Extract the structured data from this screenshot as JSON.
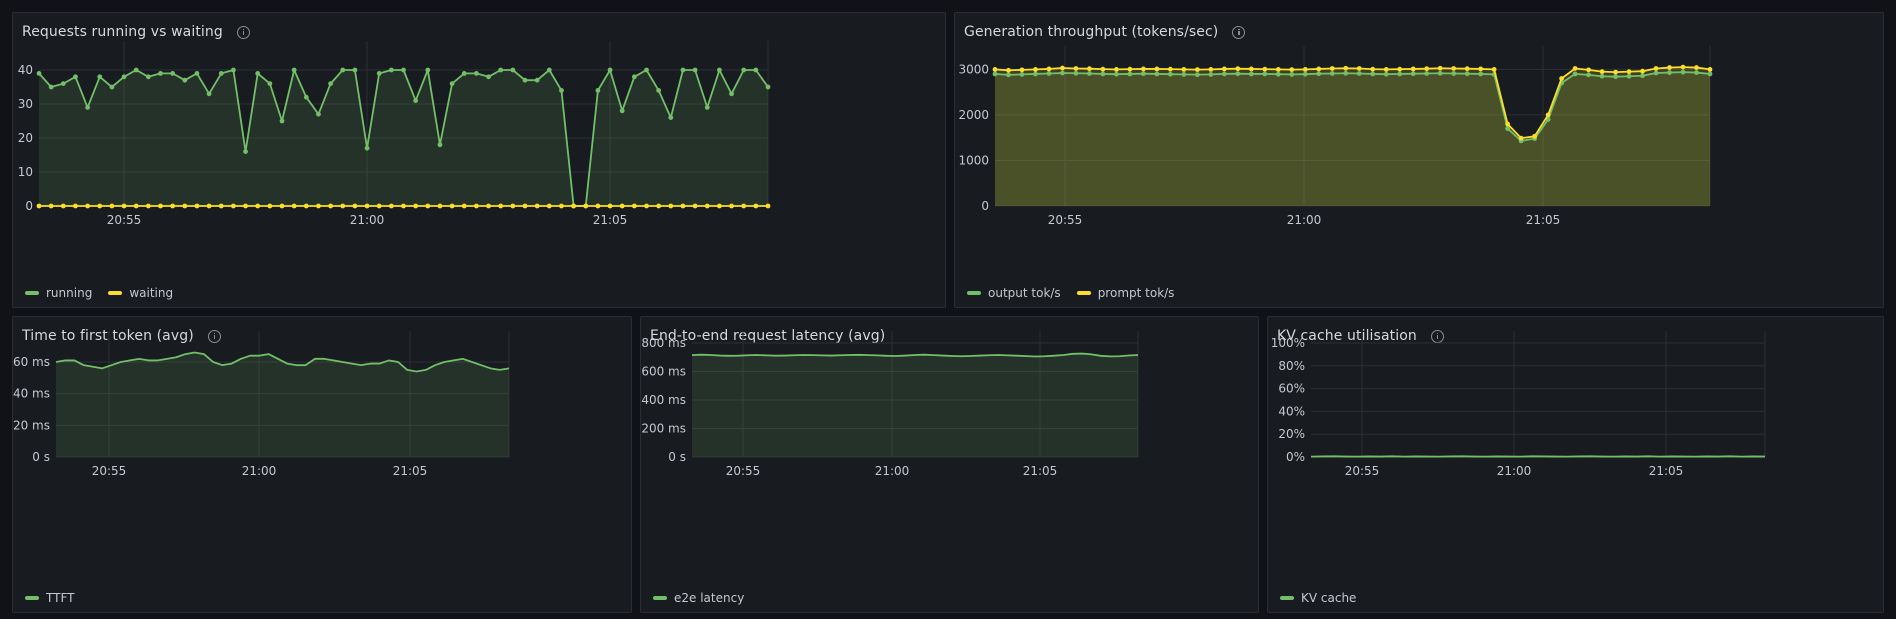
{
  "theme": {
    "green": "#73bf69",
    "yellow": "#fade2a",
    "grid": "#2c2f35",
    "axis_text": "#c7c7cf"
  },
  "panels": {
    "requests": {
      "title": "Requests running vs waiting",
      "legend": [
        "running",
        "waiting"
      ]
    },
    "throughput": {
      "title": "Generation throughput (tokens/sec)",
      "legend": [
        "output tok/s",
        "prompt tok/s"
      ]
    },
    "ttft": {
      "title": "Time to first token (avg)",
      "legend": [
        "TTFT"
      ]
    },
    "e2e": {
      "title": "End-to-end request latency (avg)",
      "legend": [
        "e2e latency"
      ]
    },
    "kv": {
      "title": "KV cache utilisation",
      "legend": [
        "KV cache"
      ]
    }
  },
  "chart_data": [
    {
      "id": "requests",
      "type": "line",
      "title": "Requests running vs waiting",
      "x_ticks": [
        "20:55",
        "21:00",
        "21:05"
      ],
      "y_ticks": [
        "0",
        "10",
        "20",
        "30",
        "40"
      ],
      "ylim": [
        0,
        45
      ],
      "points_visible": true,
      "series": [
        {
          "name": "running",
          "color": "#73bf69",
          "fill": true,
          "values": [
            39,
            35,
            36,
            38,
            29,
            38,
            35,
            38,
            40,
            38,
            39,
            39,
            37,
            39,
            33,
            39,
            40,
            16,
            39,
            36,
            25,
            40,
            32,
            27,
            36,
            40,
            40,
            17,
            39,
            40,
            40,
            31,
            40,
            18,
            36,
            39,
            39,
            38,
            40,
            40,
            37,
            37,
            40,
            34,
            0,
            0,
            34,
            40,
            28,
            38,
            40,
            34,
            26,
            40,
            40,
            29,
            40,
            33,
            40,
            40,
            35
          ]
        },
        {
          "name": "waiting",
          "color": "#fade2a",
          "fill": false,
          "values": [
            0,
            0,
            0,
            0,
            0,
            0,
            0,
            0,
            0,
            0,
            0,
            0,
            0,
            0,
            0,
            0,
            0,
            0,
            0,
            0,
            0,
            0,
            0,
            0,
            0,
            0,
            0,
            0,
            0,
            0,
            0,
            0,
            0,
            0,
            0,
            0,
            0,
            0,
            0,
            0,
            0,
            0,
            0,
            0,
            0,
            0,
            0,
            0,
            0,
            0,
            0,
            0,
            0,
            0,
            0,
            0,
            0,
            0,
            0,
            0,
            0
          ]
        }
      ]
    },
    {
      "id": "throughput",
      "type": "line",
      "title": "Generation throughput (tokens/sec)",
      "x_ticks": [
        "20:55",
        "21:00",
        "21:05"
      ],
      "y_ticks": [
        "0",
        "1000",
        "2000",
        "3000"
      ],
      "ylim": [
        0,
        3250
      ],
      "points_visible": true,
      "series": [
        {
          "name": "output tok/s",
          "color": "#73bf69",
          "fill": true,
          "values": [
            2900,
            2880,
            2890,
            2900,
            2910,
            2920,
            2915,
            2910,
            2900,
            2895,
            2900,
            2905,
            2900,
            2895,
            2890,
            2885,
            2890,
            2900,
            2905,
            2900,
            2900,
            2895,
            2890,
            2895,
            2905,
            2910,
            2915,
            2910,
            2900,
            2895,
            2900,
            2905,
            2910,
            2915,
            2910,
            2905,
            2900,
            2890,
            1700,
            1430,
            1480,
            1900,
            2700,
            2900,
            2880,
            2850,
            2840,
            2850,
            2860,
            2920,
            2930,
            2940,
            2930,
            2900
          ]
        },
        {
          "name": "prompt tok/s",
          "color": "#fade2a",
          "fill": true,
          "values": [
            3000,
            2980,
            2990,
            3000,
            3010,
            3030,
            3020,
            3015,
            3005,
            3000,
            3005,
            3010,
            3010,
            3005,
            3000,
            2995,
            3000,
            3010,
            3015,
            3010,
            3005,
            3000,
            2995,
            3000,
            3010,
            3020,
            3025,
            3020,
            3005,
            3000,
            3005,
            3010,
            3015,
            3025,
            3020,
            3015,
            3010,
            3000,
            1800,
            1490,
            1530,
            2000,
            2800,
            3020,
            2990,
            2950,
            2940,
            2950,
            2960,
            3020,
            3040,
            3050,
            3040,
            3000
          ]
        }
      ]
    },
    {
      "id": "ttft",
      "type": "line",
      "title": "Time to first token (avg)",
      "x_ticks": [
        "20:55",
        "21:00",
        "21:05"
      ],
      "y_ticks": [
        "0 s",
        "20 ms",
        "40 ms",
        "60 ms"
      ],
      "ylim": [
        0,
        72
      ],
      "points_visible": false,
      "series": [
        {
          "name": "TTFT",
          "color": "#73bf69",
          "fill": true,
          "values": [
            60,
            61,
            61,
            58,
            57,
            56,
            58,
            60,
            61,
            62,
            61,
            61,
            62,
            63,
            65,
            66,
            65,
            60,
            58,
            59,
            62,
            64,
            64,
            65,
            62,
            59,
            58,
            58,
            62,
            62,
            61,
            60,
            59,
            58,
            59,
            59,
            61,
            60,
            55,
            54,
            55,
            58,
            60,
            61,
            62,
            60,
            58,
            56,
            55,
            56
          ]
        }
      ]
    },
    {
      "id": "e2e",
      "type": "line",
      "title": "End-to-end request latency (avg)",
      "x_ticks": [
        "20:55",
        "21:00",
        "21:05"
      ],
      "y_ticks": [
        "0 s",
        "200 ms",
        "400 ms",
        "600 ms",
        "800 ms"
      ],
      "ylim": [
        0,
        800
      ],
      "points_visible": false,
      "series": [
        {
          "name": "e2e latency",
          "color": "#73bf69",
          "fill": true,
          "values": [
            715,
            718,
            716,
            712,
            710,
            711,
            714,
            716,
            713,
            711,
            712,
            714,
            716,
            715,
            713,
            712,
            714,
            716,
            717,
            715,
            713,
            710,
            709,
            712,
            716,
            718,
            715,
            712,
            709,
            707,
            709,
            712,
            714,
            716,
            713,
            711,
            708,
            705,
            707,
            711,
            716,
            724,
            726,
            720,
            710,
            706,
            707,
            712,
            716
          ]
        }
      ]
    },
    {
      "id": "kv",
      "type": "line",
      "title": "KV cache utilisation",
      "x_ticks": [
        "20:55",
        "21:00",
        "21:05"
      ],
      "y_ticks": [
        "0%",
        "20%",
        "40%",
        "60%",
        "80%",
        "100%"
      ],
      "ylim": [
        0,
        100
      ],
      "points_visible": false,
      "series": [
        {
          "name": "KV cache",
          "color": "#73bf69",
          "fill": true,
          "values": [
            0.3,
            0.5,
            0.6,
            0.4,
            0.3,
            0.5,
            0.4,
            0.6,
            0.3,
            0.5,
            0.4,
            0.3,
            0.5,
            0.6,
            0.4,
            0.3,
            0.5,
            0.4,
            0.3,
            0.6,
            0.5,
            0.4,
            0.3,
            0.5,
            0.6,
            0.4,
            0.3,
            0.5,
            0.4,
            0.6,
            0.3,
            0.5,
            0.4,
            0.3,
            0.5,
            0.4,
            0.6,
            0.3,
            0.5,
            0.4
          ]
        }
      ]
    }
  ]
}
